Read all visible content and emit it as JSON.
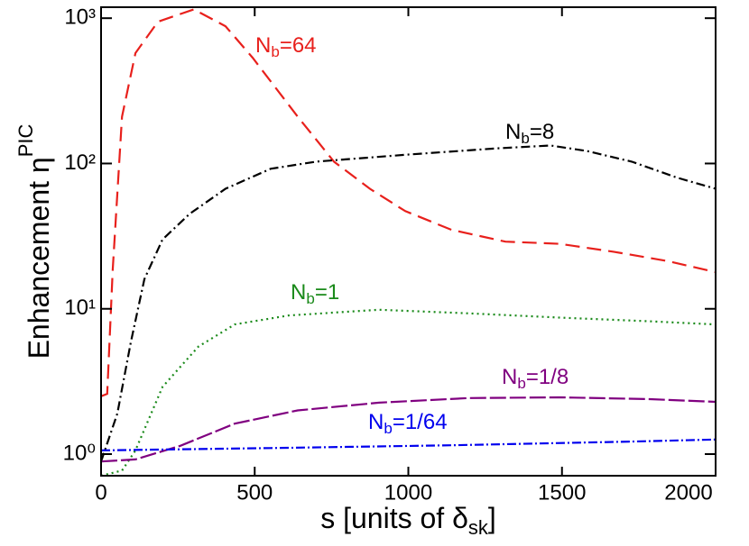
{
  "chart_data": {
    "type": "line",
    "xlabel": [
      "s [units of δ",
      "sk",
      "]"
    ],
    "ylabel": [
      "Enhancement η",
      "PIC"
    ],
    "xlim": [
      0,
      2000
    ],
    "xticks": [
      0,
      500,
      1000,
      1500,
      2000
    ],
    "ylim": [
      0.71,
      1190
    ],
    "yticks": [
      {
        "value": 1,
        "label": "10⁰"
      },
      {
        "value": 10,
        "label": "10¹"
      },
      {
        "value": 100,
        "label": "10²"
      },
      {
        "value": 1000,
        "label": "10³"
      }
    ],
    "log_y": true,
    "series": [
      {
        "name": "Nb=64",
        "color": "#e8201c",
        "dash": "16 8",
        "x": [
          0,
          20,
          38,
          68,
          112,
          185,
          302,
          405,
          493,
          640,
          758,
          875,
          990,
          1140,
          1316,
          1492,
          1668,
          1844,
          2000
        ],
        "values": [
          2.5,
          2.6,
          18.5,
          210,
          575,
          945,
          1150,
          880,
          535,
          210,
          103,
          67,
          47,
          35,
          29,
          28,
          24.7,
          21.3,
          17.9
        ]
      },
      {
        "name": "Nb=8",
        "color": "#000000",
        "dash": "10 4 2 4",
        "x": [
          0,
          53,
          97,
          141,
          200,
          288,
          405,
          552,
          700,
          993,
          1286,
          1463,
          1580,
          1727,
          1874,
          2000
        ],
        "values": [
          0.89,
          1.9,
          5.9,
          16,
          30,
          45,
          67,
          92,
          103,
          115,
          127,
          133,
          122,
          103,
          80,
          67
        ]
      },
      {
        "name": "Nb=1",
        "color": "#1a8a1a",
        "dash": "2 4",
        "x": [
          0,
          68,
          112,
          200,
          317,
          435,
          611,
          905,
          1198,
          1492,
          1786,
          2000
        ],
        "values": [
          0.71,
          0.77,
          1.06,
          2.9,
          5.5,
          7.8,
          9.0,
          9.85,
          9.3,
          8.7,
          8.2,
          7.8
        ]
      },
      {
        "name": "Nb=1/8",
        "color": "#800080",
        "dash": "18 4",
        "x": [
          0,
          112,
          258,
          435,
          640,
          905,
          1198,
          1492,
          1786,
          2000
        ],
        "values": [
          0.89,
          0.92,
          1.14,
          1.62,
          2.0,
          2.26,
          2.43,
          2.46,
          2.39,
          2.29
        ]
      },
      {
        "name": "Nb=1/64",
        "color": "#0000ee",
        "dash": "10 3 2 3",
        "x": [
          0,
          552,
          1140,
          1727,
          2000
        ],
        "values": [
          1.06,
          1.1,
          1.15,
          1.22,
          1.26
        ]
      }
    ]
  }
}
